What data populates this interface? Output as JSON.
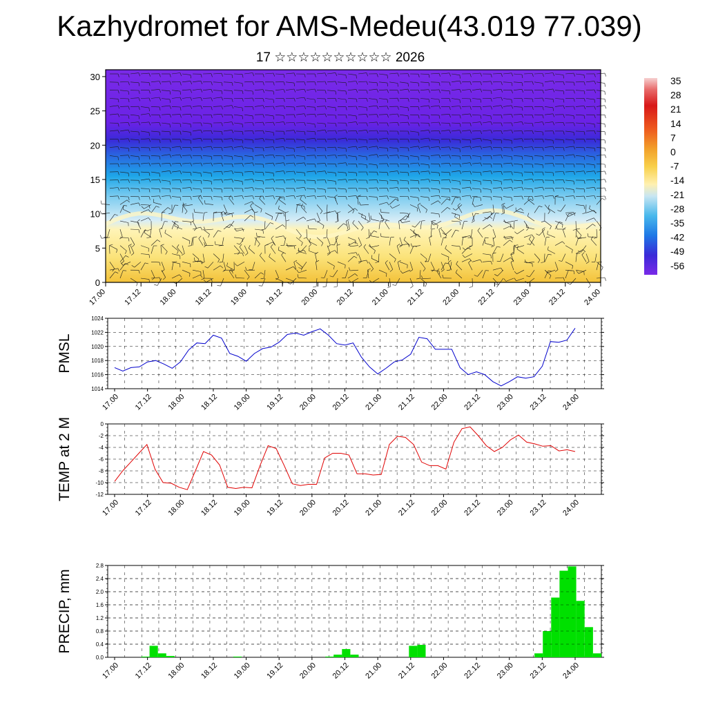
{
  "title": "Kazhydromet for AMS-Medeu(43.019 77.039)",
  "subtitle": "17 ☆☆☆☆☆☆☆☆☆☆ 2026",
  "colors": {
    "pmsl": "#0000cc",
    "temp": "#e00000",
    "precip": "#00e000"
  },
  "x_tick_labels": [
    "17.00",
    "17.12",
    "18.00",
    "18.12",
    "19.00",
    "19.12",
    "20.00",
    "20.12",
    "21.00",
    "21.12",
    "22.00",
    "22.12",
    "23.00",
    "23.12",
    "24.00"
  ],
  "chart_data": [
    {
      "type": "heatmap",
      "title": "",
      "xlabel": "",
      "ylabel": "",
      "ylim": [
        0,
        31
      ],
      "y_ticks": [
        "0",
        "5",
        "10",
        "15",
        "20",
        "25",
        "30"
      ],
      "colorbar_labels": [
        "35",
        "28",
        "21",
        "14",
        "7",
        "0",
        "-7",
        "-14",
        "-21",
        "-28",
        "-35",
        "-42",
        "-49",
        "-56"
      ],
      "description_layers": {
        "y_levels": [
          0,
          8,
          13,
          17,
          21,
          23,
          31
        ],
        "values": [
          0,
          -7,
          -21,
          -35,
          -49,
          -56,
          -60
        ]
      }
    },
    {
      "type": "line",
      "ylabel": "PMSL",
      "ylim": [
        1014,
        1024
      ],
      "y_ticks": [
        "1014",
        "1016",
        "1018",
        "1020",
        "1022",
        "1024"
      ],
      "x_hours": [
        0,
        3,
        6,
        9,
        12,
        15,
        18,
        21,
        24,
        27,
        30,
        33,
        36,
        39,
        42,
        45,
        48,
        51,
        54,
        57,
        60,
        63,
        66,
        69,
        72,
        75,
        78,
        81,
        84,
        87,
        90,
        93,
        96,
        99,
        102,
        105,
        108,
        111,
        114,
        117,
        120,
        123,
        126,
        129,
        132,
        135,
        138,
        141,
        144,
        147,
        150,
        153,
        156,
        159,
        162,
        165,
        168
      ],
      "series": [
        {
          "values": [
            1017.0,
            1016.5,
            1017.0,
            1017.1,
            1017.8,
            1018.0,
            1017.5,
            1016.9,
            1017.8,
            1019.5,
            1020.5,
            1020.4,
            1021.6,
            1021.2,
            1019.0,
            1018.6,
            1017.9,
            1019.0,
            1019.7,
            1019.9,
            1020.6,
            1021.7,
            1021.9,
            1021.6,
            1022.1,
            1022.5,
            1021.6,
            1020.4,
            1020.2,
            1020.5,
            1018.5,
            1017.1,
            1016.1,
            1016.9,
            1017.8,
            1018.1,
            1018.9,
            1021.3,
            1021.1,
            1019.6,
            1019.6,
            1019.6,
            1017.0,
            1016.0,
            1016.4,
            1016.0,
            1015.0,
            1014.4,
            1015.0,
            1015.7,
            1015.5,
            1015.7,
            1017.2,
            1020.7,
            1020.6,
            1020.9,
            1022.6
          ]
        }
      ]
    },
    {
      "type": "line",
      "ylabel": "TEMP at 2 M",
      "ylim": [
        -12,
        0
      ],
      "y_ticks": [
        "0",
        "-2",
        "-4",
        "-6",
        "-8",
        "-10",
        "-12"
      ],
      "series": [
        {
          "values": [
            -9.8,
            -8.0,
            -6.5,
            -5.0,
            -3.5,
            -7.7,
            -10.0,
            -10.1,
            -10.8,
            -11.2,
            -8.0,
            -4.7,
            -5.3,
            -7.0,
            -10.8,
            -11.0,
            -10.8,
            -10.9,
            -7.1,
            -3.7,
            -4.2,
            -7.1,
            -10.2,
            -10.5,
            -10.3,
            -10.3,
            -5.8,
            -5.0,
            -5.0,
            -5.3,
            -8.5,
            -8.5,
            -8.7,
            -8.6,
            -3.5,
            -2.1,
            -2.3,
            -3.5,
            -6.5,
            -7.1,
            -7.1,
            -7.7,
            -3.1,
            -0.8,
            -0.5,
            -2.0,
            -3.7,
            -4.7,
            -4.0,
            -2.7,
            -1.9,
            -3.1,
            -3.4,
            -3.8,
            -3.7,
            -4.6,
            -4.4,
            -4.7
          ]
        }
      ]
    },
    {
      "type": "bar",
      "ylabel": "PRECIP, mm",
      "ylim": [
        0,
        2.8
      ],
      "y_ticks": [
        "0.0",
        "0.4",
        "0.8",
        "1.2",
        "1.6",
        "2.0",
        "2.4",
        "2.8"
      ],
      "series": [
        {
          "values": [
            0,
            0,
            0,
            0,
            0.02,
            0.35,
            0.12,
            0.04,
            0,
            0,
            0,
            0,
            0,
            0,
            0,
            0.02,
            0,
            0,
            0,
            0,
            0,
            0,
            0,
            0,
            0,
            0,
            0.02,
            0.08,
            0.25,
            0.08,
            0,
            0,
            0,
            0,
            0,
            0,
            0.35,
            0.38,
            0,
            0,
            0,
            0,
            0,
            0,
            0,
            0,
            0,
            0,
            0,
            0,
            0,
            0.12,
            0.8,
            1.82,
            2.64,
            2.77,
            1.72,
            0.92,
            0.12
          ]
        }
      ]
    }
  ]
}
